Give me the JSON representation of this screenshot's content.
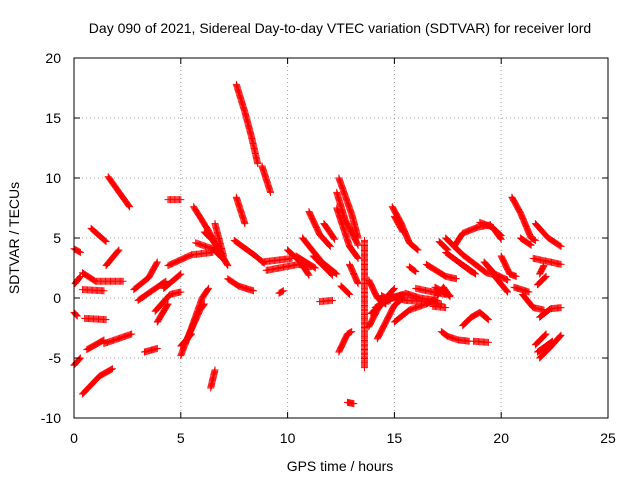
{
  "chart_data": {
    "type": "scatter",
    "title": "Day 090 of 2021, Sidereal Day-to-day VTEC variation (SDTVAR) for receiver lord",
    "xlabel": "GPS time / hours",
    "ylabel": "SDTVAR / TECUs",
    "xlim": [
      0,
      25
    ],
    "ylim": [
      -10,
      20
    ],
    "xticks": [
      0,
      5,
      10,
      15,
      20,
      25
    ],
    "yticks": [
      -10,
      -5,
      0,
      5,
      10,
      15,
      20
    ],
    "grid": true,
    "marker": "+",
    "color": "#ff0000",
    "series": [
      {
        "name": "SDTVAR",
        "segments": [
          [
            [
              0.0,
              4.1
            ],
            [
              0.3,
              3.8
            ]
          ],
          [
            [
              0.05,
              1.2
            ],
            [
              0.3,
              1.8
            ]
          ],
          [
            [
              0.0,
              -1.2
            ],
            [
              0.15,
              -1.5
            ]
          ],
          [
            [
              0.0,
              -5.6
            ],
            [
              0.3,
              -5.0
            ]
          ],
          [
            [
              0.4,
              -8.0
            ],
            [
              1.2,
              -6.5
            ],
            [
              1.8,
              -5.9
            ]
          ],
          [
            [
              0.4,
              2.1
            ],
            [
              1.0,
              1.4
            ],
            [
              2.3,
              1.4
            ]
          ],
          [
            [
              0.4,
              0.7
            ],
            [
              1.4,
              0.6
            ]
          ],
          [
            [
              0.5,
              -1.7
            ],
            [
              1.5,
              -1.8
            ]
          ],
          [
            [
              0.6,
              -4.3
            ],
            [
              1.4,
              -3.5
            ]
          ],
          [
            [
              0.8,
              5.8
            ],
            [
              1.5,
              4.7
            ]
          ],
          [
            [
              1.4,
              -3.8
            ],
            [
              2.7,
              -3.0
            ]
          ],
          [
            [
              1.5,
              2.7
            ],
            [
              2.1,
              4.0
            ]
          ],
          [
            [
              1.6,
              10.1
            ],
            [
              2.6,
              7.6
            ]
          ],
          [
            [
              2.8,
              0.7
            ],
            [
              3.5,
              1.7
            ],
            [
              3.9,
              3.0
            ]
          ],
          [
            [
              3.0,
              -0.2
            ],
            [
              4.3,
              1.4
            ]
          ],
          [
            [
              3.3,
              -4.5
            ],
            [
              3.9,
              -4.2
            ]
          ],
          [
            [
              3.9,
              -2.0
            ],
            [
              4.4,
              -0.5
            ]
          ],
          [
            [
              3.8,
              -1.1
            ],
            [
              4.5,
              0.3
            ],
            [
              5.0,
              0.5
            ]
          ],
          [
            [
              4.2,
              0.8
            ],
            [
              5.0,
              2.0
            ]
          ],
          [
            [
              4.4,
              2.7
            ],
            [
              5.5,
              3.6
            ],
            [
              6.5,
              3.8
            ]
          ],
          [
            [
              4.4,
              8.2
            ],
            [
              5.0,
              8.2
            ]
          ],
          [
            [
              5.0,
              -4.8
            ],
            [
              5.5,
              -2.5
            ],
            [
              6.0,
              0.0
            ],
            [
              6.3,
              0.8
            ]
          ],
          [
            [
              5.2,
              -3.8
            ],
            [
              5.9,
              -1.0
            ],
            [
              6.1,
              -0.5
            ]
          ],
          [
            [
              5.0,
              -4.0
            ],
            [
              5.5,
              -3.0
            ]
          ],
          [
            [
              5.6,
              7.6
            ],
            [
              6.3,
              5.6
            ],
            [
              6.9,
              3.6
            ],
            [
              7.1,
              3.0
            ]
          ],
          [
            [
              5.7,
              4.6
            ],
            [
              6.5,
              4.1
            ],
            [
              6.9,
              3.4
            ]
          ],
          [
            [
              6.1,
              5.5
            ],
            [
              6.5,
              4.8
            ],
            [
              7.2,
              2.7
            ]
          ],
          [
            [
              6.4,
              -7.5
            ],
            [
              6.6,
              -6.0
            ]
          ],
          [
            [
              6.6,
              6.2
            ],
            [
              7.0,
              3.5
            ]
          ],
          [
            [
              7.2,
              1.6
            ],
            [
              7.7,
              1.0
            ],
            [
              8.4,
              0.6
            ]
          ],
          [
            [
              7.6,
              17.8
            ],
            [
              8.0,
              15.5
            ],
            [
              8.3,
              13.5
            ],
            [
              8.6,
              11.2
            ]
          ],
          [
            [
              8.8,
              11.0
            ],
            [
              9.2,
              8.8
            ]
          ],
          [
            [
              7.6,
              8.4
            ],
            [
              8.0,
              6.2
            ]
          ],
          [
            [
              7.5,
              4.8
            ],
            [
              8.5,
              3.5
            ],
            [
              8.9,
              2.9
            ]
          ],
          [
            [
              8.8,
              3.0
            ],
            [
              10.2,
              3.3
            ]
          ],
          [
            [
              9.0,
              2.3
            ],
            [
              10.5,
              2.8
            ],
            [
              11.1,
              2.6
            ]
          ],
          [
            [
              9.6,
              0.4
            ],
            [
              9.8,
              0.6
            ]
          ],
          [
            [
              10.0,
              4.0
            ],
            [
              10.6,
              3.0
            ],
            [
              11.0,
              1.9
            ]
          ],
          [
            [
              10.4,
              3.5
            ],
            [
              11.3,
              2.5
            ]
          ],
          [
            [
              10.7,
              5.0
            ],
            [
              11.6,
              3.0
            ],
            [
              12.3,
              2.0
            ]
          ],
          [
            [
              11.0,
              7.2
            ],
            [
              11.5,
              5.3
            ],
            [
              12.0,
              4.3
            ]
          ],
          [
            [
              11.2,
              3.5
            ],
            [
              11.6,
              2.8
            ],
            [
              12.1,
              1.9
            ]
          ],
          [
            [
              11.5,
              -0.3
            ],
            [
              12.1,
              -0.2
            ]
          ],
          [
            [
              11.7,
              6.2
            ],
            [
              12.2,
              4.9
            ]
          ],
          [
            [
              12.4,
              10.0
            ],
            [
              13.0,
              7.0
            ],
            [
              13.3,
              5.0
            ]
          ],
          [
            [
              12.3,
              8.8
            ],
            [
              12.7,
              6.5
            ],
            [
              13.3,
              4.4
            ]
          ],
          [
            [
              12.3,
              7.5
            ],
            [
              12.9,
              4.3
            ],
            [
              13.3,
              3.3
            ]
          ],
          [
            [
              12.4,
              -4.5
            ],
            [
              12.8,
              -3.0
            ],
            [
              13.0,
              -2.8
            ]
          ],
          [
            [
              12.5,
              1.0
            ],
            [
              12.9,
              0.3
            ]
          ],
          [
            [
              12.9,
              2.8
            ],
            [
              13.3,
              1.2
            ]
          ],
          [
            [
              12.8,
              -8.7
            ],
            [
              13.1,
              -8.8
            ]
          ],
          [
            [
              13.6,
              4.8
            ],
            [
              13.6,
              1.0
            ],
            [
              13.6,
              -3.0
            ],
            [
              13.6,
              -5.8
            ]
          ],
          [
            [
              13.8,
              1.5
            ],
            [
              14.2,
              0.0
            ],
            [
              14.6,
              -0.5
            ]
          ],
          [
            [
              13.8,
              -2.4
            ],
            [
              14.2,
              -1.0
            ],
            [
              14.6,
              0.0
            ],
            [
              15.0,
              0.8
            ]
          ],
          [
            [
              13.9,
              -1.3
            ],
            [
              14.6,
              -0.2
            ],
            [
              15.5,
              0.3
            ]
          ],
          [
            [
              14.1,
              -0.8
            ],
            [
              14.8,
              0.0
            ],
            [
              15.4,
              0.3
            ]
          ],
          [
            [
              14.2,
              -3.4
            ],
            [
              14.6,
              -2.0
            ],
            [
              15.0,
              -0.6
            ],
            [
              15.4,
              0.0
            ]
          ],
          [
            [
              14.4,
              0.2
            ],
            [
              14.8,
              -0.2
            ]
          ],
          [
            [
              14.9,
              7.6
            ],
            [
              15.3,
              6.3
            ],
            [
              15.7,
              4.6
            ],
            [
              16.1,
              4.0
            ]
          ],
          [
            [
              15.0,
              6.8
            ],
            [
              15.4,
              5.5
            ]
          ],
          [
            [
              15.0,
              -2.0
            ],
            [
              15.7,
              -1.0
            ],
            [
              16.5,
              -0.5
            ],
            [
              16.9,
              -0.1
            ]
          ],
          [
            [
              14.8,
              0.2
            ],
            [
              15.5,
              -0.2
            ],
            [
              16.5,
              -0.3
            ],
            [
              17.2,
              -0.5
            ]
          ],
          [
            [
              15.5,
              0.4
            ],
            [
              16.2,
              0.0
            ],
            [
              17.0,
              -0.2
            ]
          ],
          [
            [
              15.7,
              2.6
            ],
            [
              16.0,
              2.2
            ]
          ],
          [
            [
              16.0,
              0.8
            ],
            [
              16.8,
              0.5
            ],
            [
              17.4,
              0.3
            ]
          ],
          [
            [
              16.5,
              2.8
            ],
            [
              17.4,
              1.8
            ],
            [
              17.9,
              1.6
            ]
          ],
          [
            [
              16.8,
              -0.7
            ],
            [
              17.4,
              -0.8
            ]
          ],
          [
            [
              17.0,
              0.2
            ],
            [
              17.3,
              0.9
            ],
            [
              17.6,
              0.1
            ]
          ],
          [
            [
              17.1,
              4.7
            ],
            [
              17.5,
              4.0
            ]
          ],
          [
            [
              16.9,
              0.9
            ],
            [
              17.6,
              0.2
            ]
          ],
          [
            [
              17.2,
              -2.8
            ],
            [
              17.5,
              -3.2
            ],
            [
              18.0,
              -3.5
            ],
            [
              18.5,
              -3.6
            ]
          ],
          [
            [
              17.4,
              5.0
            ],
            [
              18.2,
              3.6
            ],
            [
              19.3,
              2.1
            ],
            [
              19.8,
              1.9
            ]
          ],
          [
            [
              17.4,
              3.8
            ],
            [
              18.0,
              3.0
            ],
            [
              18.8,
              2.0
            ]
          ],
          [
            [
              18.0,
              3.0
            ],
            [
              18.6,
              2.2
            ]
          ],
          [
            [
              17.8,
              4.3
            ],
            [
              18.2,
              5.4
            ],
            [
              18.9,
              5.9
            ],
            [
              19.5,
              6.1
            ]
          ],
          [
            [
              18.2,
              -2.3
            ],
            [
              18.6,
              -1.6
            ],
            [
              19.0,
              -1.2
            ],
            [
              19.4,
              -1.8
            ]
          ],
          [
            [
              18.7,
              -3.6
            ],
            [
              19.4,
              -3.7
            ]
          ],
          [
            [
              19.0,
              6.3
            ],
            [
              19.6,
              5.9
            ],
            [
              20.0,
              4.9
            ]
          ],
          [
            [
              19.5,
              6.0
            ],
            [
              20.0,
              5.2
            ]
          ],
          [
            [
              19.7,
              1.8
            ],
            [
              20.3,
              0.5
            ]
          ],
          [
            [
              19.2,
              3.0
            ],
            [
              19.7,
              2.0
            ],
            [
              20.3,
              1.5
            ]
          ],
          [
            [
              20.0,
              3.5
            ],
            [
              20.4,
              2.0
            ],
            [
              20.7,
              1.8
            ]
          ],
          [
            [
              20.5,
              8.4
            ],
            [
              20.9,
              7.1
            ],
            [
              21.4,
              5.0
            ],
            [
              21.6,
              4.8
            ]
          ],
          [
            [
              20.6,
              0.9
            ],
            [
              21.3,
              0.5
            ]
          ],
          [
            [
              21.0,
              0.3
            ],
            [
              21.5,
              -0.8
            ],
            [
              22.0,
              -1.0
            ]
          ],
          [
            [
              20.9,
              5.0
            ],
            [
              21.4,
              4.4
            ]
          ],
          [
            [
              21.6,
              6.2
            ],
            [
              22.2,
              5.0
            ],
            [
              22.8,
              4.3
            ]
          ],
          [
            [
              21.5,
              3.3
            ],
            [
              22.3,
              3.0
            ],
            [
              22.8,
              2.8
            ]
          ],
          [
            [
              21.7,
              1.1
            ],
            [
              22.1,
              1.8
            ]
          ],
          [
            [
              21.8,
              2.0
            ],
            [
              22.0,
              2.7
            ]
          ],
          [
            [
              21.6,
              -3.9
            ],
            [
              22.1,
              -3.0
            ]
          ],
          [
            [
              21.8,
              -1.6
            ],
            [
              22.3,
              -0.9
            ],
            [
              22.8,
              -0.8
            ]
          ],
          [
            [
              21.8,
              -5.0
            ],
            [
              22.3,
              -4.1
            ],
            [
              22.8,
              -3.1
            ]
          ],
          [
            [
              21.7,
              -4.5
            ],
            [
              22.4,
              -3.6
            ]
          ]
        ]
      }
    ]
  }
}
